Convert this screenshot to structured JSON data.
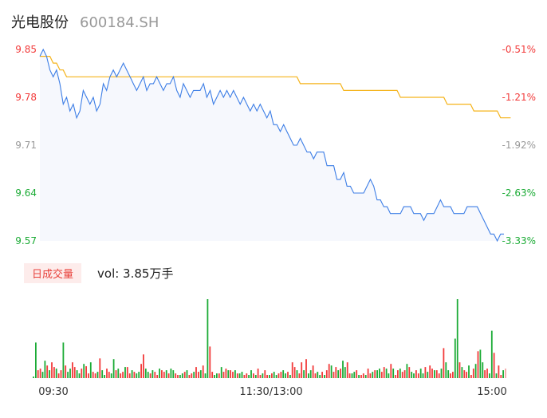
{
  "header": {
    "name": "光电股份",
    "code": "600184.SH"
  },
  "volume_panel": {
    "badge": "日成交量",
    "vol_label": "vol: 3.85万手"
  },
  "colors": {
    "price_line": "#3d7ee6",
    "avg_line": "#f5b31a",
    "up": "#f23a3a",
    "down": "#1bab35",
    "flat": "#999999",
    "fill": "#f6f8fd"
  },
  "chart_data": [
    {
      "type": "line",
      "title": "",
      "y_left_ticks": [
        "9.85",
        "9.78",
        "9.71",
        "9.64",
        "9.57"
      ],
      "y_right_ticks": [
        "-0.51%",
        "-1.21%",
        "-1.92%",
        "-2.63%",
        "-3.33%"
      ],
      "ylim": [
        9.57,
        9.85
      ],
      "x_ticks": [
        "09:30",
        "11:30/13:00",
        "15:00"
      ],
      "series": [
        {
          "values": [
            9.84,
            9.85,
            9.84,
            9.82,
            9.81,
            9.82,
            9.8,
            9.77,
            9.78,
            9.76,
            9.77,
            9.75,
            9.76,
            9.79,
            9.78,
            9.77,
            9.78,
            9.76,
            9.77,
            9.8,
            9.79,
            9.81,
            9.82,
            9.81,
            9.82,
            9.83,
            9.82,
            9.81,
            9.8,
            9.79,
            9.8,
            9.81,
            9.79,
            9.8,
            9.8,
            9.81,
            9.8,
            9.79,
            9.8,
            9.8,
            9.81,
            9.79,
            9.78,
            9.8,
            9.79,
            9.78,
            9.79,
            9.79,
            9.79,
            9.8,
            9.78,
            9.79,
            9.77,
            9.78,
            9.79,
            9.78,
            9.79,
            9.78,
            9.79,
            9.78,
            9.77,
            9.78,
            9.77,
            9.76,
            9.77,
            9.76,
            9.77,
            9.76,
            9.75,
            9.76,
            9.74,
            9.74,
            9.73,
            9.74,
            9.73,
            9.72,
            9.71,
            9.71,
            9.72,
            9.71,
            9.7,
            9.7,
            9.69,
            9.7,
            9.7,
            9.7,
            9.68,
            9.68,
            9.68,
            9.66,
            9.66,
            9.67,
            9.65,
            9.65,
            9.64,
            9.64,
            9.64,
            9.64,
            9.65,
            9.66,
            9.65,
            9.63,
            9.63,
            9.62,
            9.62,
            9.61,
            9.61,
            9.61,
            9.61,
            9.62,
            9.62,
            9.62,
            9.61,
            9.61,
            9.61,
            9.6,
            9.61,
            9.61,
            9.61,
            9.62,
            9.63,
            9.62,
            9.62,
            9.62,
            9.61,
            9.61,
            9.61,
            9.61,
            9.62,
            9.62,
            9.62,
            9.62,
            9.61,
            9.6,
            9.59,
            9.58,
            9.58,
            9.57,
            9.58,
            9.58
          ]
        },
        {
          "values": [
            9.84,
            9.84,
            9.84,
            9.84,
            9.83,
            9.83,
            9.82,
            9.82,
            9.81,
            9.81,
            9.81,
            9.81,
            9.81,
            9.81,
            9.81,
            9.81,
            9.81,
            9.81,
            9.81,
            9.81,
            9.81,
            9.81,
            9.81,
            9.81,
            9.81,
            9.81,
            9.81,
            9.81,
            9.81,
            9.81,
            9.81,
            9.81,
            9.81,
            9.81,
            9.81,
            9.81,
            9.81,
            9.81,
            9.81,
            9.81,
            9.81,
            9.81,
            9.81,
            9.81,
            9.81,
            9.81,
            9.81,
            9.81,
            9.81,
            9.81,
            9.81,
            9.81,
            9.81,
            9.81,
            9.81,
            9.81,
            9.81,
            9.81,
            9.81,
            9.81,
            9.81,
            9.81,
            9.81,
            9.81,
            9.81,
            9.81,
            9.81,
            9.81,
            9.81,
            9.81,
            9.81,
            9.81,
            9.81,
            9.81,
            9.81,
            9.81,
            9.81,
            9.81,
            9.8,
            9.8,
            9.8,
            9.8,
            9.8,
            9.8,
            9.8,
            9.8,
            9.8,
            9.8,
            9.8,
            9.8,
            9.8,
            9.79,
            9.79,
            9.79,
            9.79,
            9.79,
            9.79,
            9.79,
            9.79,
            9.79,
            9.79,
            9.79,
            9.79,
            9.79,
            9.79,
            9.79,
            9.79,
            9.79,
            9.78,
            9.78,
            9.78,
            9.78,
            9.78,
            9.78,
            9.78,
            9.78,
            9.78,
            9.78,
            9.78,
            9.78,
            9.78,
            9.78,
            9.77,
            9.77,
            9.77,
            9.77,
            9.77,
            9.77,
            9.77,
            9.77,
            9.76,
            9.76,
            9.76,
            9.76,
            9.76,
            9.76,
            9.76,
            9.76,
            9.75,
            9.75,
            9.75,
            9.75
          ]
        }
      ]
    },
    {
      "type": "bar",
      "title": "",
      "unit": "手",
      "values": [
        2,
        45,
        10,
        12,
        8,
        22,
        16,
        10,
        20,
        14,
        12,
        6,
        10,
        45,
        16,
        8,
        12,
        20,
        14,
        10,
        6,
        12,
        18,
        15,
        6,
        20,
        8,
        6,
        8,
        25,
        10,
        4,
        12,
        8,
        6,
        24,
        10,
        12,
        6,
        8,
        14,
        14,
        6,
        10,
        8,
        6,
        8,
        18,
        30,
        12,
        8,
        6,
        10,
        8,
        4,
        12,
        10,
        8,
        10,
        6,
        12,
        10,
        6,
        4,
        4,
        6,
        8,
        10,
        4,
        6,
        8,
        14,
        8,
        10,
        16,
        6,
        100,
        40,
        8,
        4,
        6,
        6,
        14,
        8,
        12,
        10,
        10,
        8,
        10,
        6,
        6,
        8,
        4,
        6,
        4,
        10,
        6,
        4,
        12,
        4,
        6,
        10,
        4,
        4,
        6,
        8,
        4,
        6,
        8,
        10,
        6,
        8,
        4,
        20,
        14,
        10,
        6,
        20,
        10,
        24,
        6,
        10,
        16,
        6,
        8,
        4,
        8,
        4,
        10,
        18,
        16,
        8,
        14,
        10,
        12,
        22,
        14,
        20,
        6,
        6,
        8,
        10,
        4,
        4,
        6,
        4,
        12,
        6,
        8,
        10,
        10,
        12,
        8,
        14,
        12,
        6,
        18,
        12,
        4,
        10,
        12,
        8,
        10,
        18,
        14,
        8,
        6,
        10,
        6,
        12,
        6,
        14,
        8,
        16,
        12,
        10,
        10,
        6,
        12,
        38,
        20,
        10,
        6,
        8,
        50,
        100,
        20,
        14,
        10,
        8,
        16,
        4,
        12,
        18,
        34,
        36,
        20,
        10,
        12,
        6,
        60,
        32,
        6,
        16,
        4,
        10,
        12
      ]
    }
  ]
}
